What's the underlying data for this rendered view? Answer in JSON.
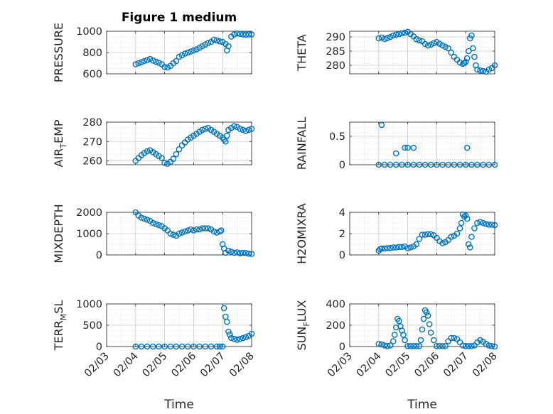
{
  "figure": {
    "title": "Figure 1 medium",
    "xlabel": "Time"
  },
  "colors": {
    "marker": "#0072BD",
    "grid": "#d9d9d9",
    "axis": "#262626"
  },
  "chart_data": [
    {
      "type": "scatter",
      "name": "PRESSURE",
      "ylabel": {
        "main": "PRESSURE",
        "sub": "",
        "tail": ""
      },
      "xlim": [
        0,
        5
      ],
      "ylim": [
        600,
        1000
      ],
      "yticks": [
        600,
        800,
        1000
      ],
      "x": [
        1.0,
        1.1,
        1.2,
        1.3,
        1.4,
        1.5,
        1.6,
        1.7,
        1.8,
        1.9,
        2.0,
        2.1,
        2.2,
        2.3,
        2.4,
        2.5,
        2.6,
        2.7,
        2.8,
        2.9,
        3.0,
        3.1,
        3.2,
        3.3,
        3.4,
        3.5,
        3.6,
        3.7,
        3.8,
        3.9,
        4.0,
        4.1,
        4.15,
        4.2,
        4.3,
        4.4,
        4.5,
        4.6,
        4.7,
        4.8,
        4.9,
        5.0
      ],
      "y": [
        690,
        700,
        710,
        720,
        730,
        740,
        725,
        715,
        705,
        690,
        665,
        660,
        675,
        700,
        720,
        760,
        775,
        790,
        800,
        810,
        820,
        830,
        845,
        860,
        875,
        890,
        900,
        920,
        915,
        905,
        900,
        880,
        820,
        860,
        950,
        970,
        980,
        975,
        970,
        968,
        970,
        970
      ]
    },
    {
      "type": "scatter",
      "name": "THETA",
      "ylabel": {
        "main": "THETA",
        "sub": "",
        "tail": ""
      },
      "xlim": [
        0,
        5
      ],
      "ylim": [
        277,
        292
      ],
      "yticks": [
        280,
        285,
        290
      ],
      "x": [
        1.0,
        1.1,
        1.2,
        1.3,
        1.4,
        1.5,
        1.6,
        1.7,
        1.8,
        1.9,
        2.0,
        2.1,
        2.2,
        2.3,
        2.4,
        2.5,
        2.6,
        2.7,
        2.8,
        2.9,
        3.0,
        3.1,
        3.2,
        3.3,
        3.4,
        3.5,
        3.6,
        3.7,
        3.8,
        3.9,
        3.95,
        4.0,
        4.05,
        4.1,
        4.15,
        4.2,
        4.25,
        4.3,
        4.35,
        4.4,
        4.5,
        4.6,
        4.7,
        4.8,
        4.9,
        5.0
      ],
      "y": [
        289.5,
        289.8,
        289.3,
        289.6,
        290.0,
        290.5,
        290.8,
        291.0,
        291.3,
        291.5,
        291.8,
        291.0,
        290.2,
        289.2,
        288.8,
        288.5,
        287.5,
        287.0,
        287.3,
        287.8,
        288.2,
        287.6,
        287.0,
        286.5,
        286.0,
        284.5,
        283.0,
        282.0,
        281.0,
        280.5,
        280.8,
        281.2,
        282.5,
        285.0,
        289.5,
        290.5,
        286.0,
        283.0,
        280.0,
        278.5,
        278.2,
        278.0,
        277.8,
        278.5,
        279.0,
        280.0
      ]
    },
    {
      "type": "scatter",
      "name": "AIR_TEMP",
      "ylabel": {
        "main": "AIR",
        "sub": "T",
        "tail": "EMP"
      },
      "xlim": [
        0,
        5
      ],
      "ylim": [
        258,
        280
      ],
      "yticks": [
        260,
        270,
        280
      ],
      "x": [
        1.0,
        1.1,
        1.2,
        1.3,
        1.4,
        1.5,
        1.6,
        1.7,
        1.8,
        1.9,
        2.0,
        2.1,
        2.2,
        2.3,
        2.4,
        2.5,
        2.6,
        2.7,
        2.8,
        2.9,
        3.0,
        3.1,
        3.2,
        3.3,
        3.4,
        3.5,
        3.6,
        3.7,
        3.8,
        3.9,
        4.0,
        4.05,
        4.1,
        4.15,
        4.2,
        4.3,
        4.4,
        4.5,
        4.6,
        4.7,
        4.8,
        4.9,
        5.0
      ],
      "y": [
        260,
        261.5,
        263,
        264,
        265,
        265.5,
        264.5,
        263.5,
        262.5,
        261.5,
        259,
        258.5,
        259.5,
        261,
        263.5,
        266,
        268,
        269.5,
        271,
        272,
        273,
        274,
        275,
        276,
        276.5,
        277,
        276,
        275,
        274,
        273,
        272,
        271,
        270,
        273,
        276,
        277,
        278,
        277.5,
        276.5,
        276,
        275.5,
        276,
        276.5
      ]
    },
    {
      "type": "scatter",
      "name": "RAINFALL",
      "ylabel": {
        "main": "RAINFALL",
        "sub": "",
        "tail": ""
      },
      "xlim": [
        0,
        5
      ],
      "ylim": [
        0,
        0.75
      ],
      "yticks": [
        0,
        0.5
      ],
      "x": [
        1.0,
        1.2,
        1.4,
        1.6,
        1.8,
        2.0,
        2.2,
        2.4,
        2.6,
        2.8,
        3.0,
        3.2,
        3.4,
        3.6,
        3.8,
        4.0,
        4.2,
        4.4,
        4.6,
        4.8,
        5.0,
        1.1,
        1.6,
        1.9,
        2.0,
        2.2,
        4.05
      ],
      "y": [
        0,
        0,
        0,
        0,
        0,
        0,
        0,
        0,
        0,
        0,
        0,
        0,
        0,
        0,
        0,
        0,
        0,
        0,
        0,
        0,
        0,
        0.7,
        0.2,
        0.3,
        0.3,
        0.3,
        0.3
      ]
    },
    {
      "type": "scatter",
      "name": "MIXDEPTH",
      "ylabel": {
        "main": "MIXDEPTH",
        "sub": "",
        "tail": ""
      },
      "xlim": [
        0,
        5
      ],
      "ylim": [
        0,
        2000
      ],
      "yticks": [
        0,
        1000,
        2000
      ],
      "x": [
        1.0,
        1.1,
        1.2,
        1.3,
        1.4,
        1.5,
        1.6,
        1.7,
        1.8,
        1.9,
        2.0,
        2.1,
        2.2,
        2.3,
        2.4,
        2.5,
        2.6,
        2.7,
        2.8,
        2.9,
        3.0,
        3.1,
        3.2,
        3.3,
        3.4,
        3.5,
        3.6,
        3.7,
        3.8,
        3.9,
        3.95,
        4.0,
        4.05,
        4.1,
        4.2,
        4.3,
        4.4,
        4.5,
        4.6,
        4.7,
        4.8,
        4.9,
        5.0
      ],
      "y": [
        2000,
        1850,
        1750,
        1700,
        1650,
        1600,
        1500,
        1450,
        1400,
        1350,
        1250,
        1150,
        1000,
        950,
        900,
        1000,
        1050,
        1100,
        1150,
        1200,
        1150,
        1200,
        1200,
        1250,
        1250,
        1250,
        1200,
        1100,
        1050,
        1100,
        1150,
        500,
        300,
        100,
        200,
        150,
        100,
        120,
        80,
        100,
        90,
        60,
        50
      ]
    },
    {
      "type": "scatter",
      "name": "H2OMIXRA",
      "ylabel": {
        "main": "H2OMIXRA",
        "sub": "",
        "tail": ""
      },
      "xlim": [
        0,
        5
      ],
      "ylim": [
        0,
        4
      ],
      "yticks": [
        0,
        2,
        4
      ],
      "x": [
        1.0,
        1.05,
        1.1,
        1.2,
        1.3,
        1.4,
        1.5,
        1.6,
        1.7,
        1.8,
        1.9,
        2.0,
        2.1,
        2.2,
        2.3,
        2.4,
        2.5,
        2.6,
        2.7,
        2.8,
        2.9,
        3.0,
        3.1,
        3.2,
        3.3,
        3.4,
        3.5,
        3.6,
        3.7,
        3.8,
        3.85,
        3.9,
        3.95,
        4.0,
        4.05,
        4.1,
        4.15,
        4.2,
        4.3,
        4.4,
        4.5,
        4.6,
        4.7,
        4.8,
        4.9,
        5.0
      ],
      "y": [
        0.4,
        0.55,
        0.6,
        0.6,
        0.65,
        0.65,
        0.7,
        0.7,
        0.75,
        0.75,
        0.8,
        0.65,
        0.7,
        0.8,
        1.0,
        1.5,
        1.9,
        1.9,
        1.95,
        1.95,
        1.85,
        1.6,
        1.3,
        1.1,
        1.2,
        1.4,
        1.7,
        1.8,
        2.0,
        2.5,
        3.0,
        3.8,
        3.6,
        3.7,
        3.4,
        1.0,
        0.7,
        1.7,
        2.5,
        3.0,
        3.1,
        3.0,
        2.9,
        2.85,
        2.85,
        2.8
      ]
    },
    {
      "type": "scatter",
      "name": "TERR_MSL",
      "ylabel": {
        "main": "TERR",
        "sub": "M",
        "tail": "SL"
      },
      "xlim": [
        0,
        5
      ],
      "ylim": [
        0,
        1000
      ],
      "yticks": [
        0,
        500,
        1000
      ],
      "x": [
        1.0,
        1.2,
        1.4,
        1.6,
        1.8,
        2.0,
        2.2,
        2.4,
        2.6,
        2.8,
        3.0,
        3.2,
        3.4,
        3.6,
        3.8,
        3.9,
        4.0,
        4.05,
        4.1,
        4.15,
        4.2,
        4.25,
        4.3,
        4.4,
        4.5,
        4.6,
        4.7,
        4.8,
        4.9,
        5.0
      ],
      "y": [
        0,
        0,
        0,
        0,
        0,
        0,
        0,
        0,
        0,
        0,
        0,
        0,
        0,
        0,
        0,
        0,
        0,
        900,
        700,
        580,
        350,
        280,
        200,
        180,
        160,
        180,
        200,
        220,
        250,
        300
      ]
    },
    {
      "type": "scatter",
      "name": "SUN_FLUX",
      "ylabel": {
        "main": "SUN",
        "sub": "F",
        "tail": "LUX"
      },
      "xlim": [
        0,
        5
      ],
      "ylim": [
        0,
        400
      ],
      "yticks": [
        0,
        200,
        400
      ],
      "x": [
        1.0,
        1.1,
        1.2,
        1.3,
        1.4,
        1.5,
        1.55,
        1.6,
        1.65,
        1.7,
        1.75,
        1.8,
        1.85,
        1.9,
        2.0,
        2.1,
        2.2,
        2.3,
        2.4,
        2.45,
        2.5,
        2.55,
        2.6,
        2.65,
        2.7,
        2.75,
        2.8,
        2.9,
        3.0,
        3.1,
        3.2,
        3.3,
        3.4,
        3.5,
        3.6,
        3.7,
        3.8,
        3.9,
        4.0,
        4.1,
        4.2,
        4.3,
        4.4,
        4.5,
        4.6,
        4.7,
        4.8,
        4.9,
        5.0
      ],
      "y": [
        25,
        20,
        10,
        5,
        10,
        50,
        110,
        180,
        260,
        240,
        190,
        150,
        110,
        60,
        5,
        5,
        5,
        5,
        5,
        60,
        160,
        260,
        340,
        320,
        290,
        210,
        130,
        60,
        5,
        5,
        5,
        5,
        50,
        80,
        80,
        70,
        40,
        10,
        5,
        5,
        5,
        10,
        40,
        60,
        45,
        25,
        10,
        5,
        0
      ]
    }
  ],
  "xaxis": {
    "ticks": [
      0,
      1,
      2,
      3,
      4,
      5
    ],
    "ticklabels": [
      "02/03",
      "02/04",
      "02/05",
      "02/06",
      "02/07",
      "02/08"
    ]
  }
}
